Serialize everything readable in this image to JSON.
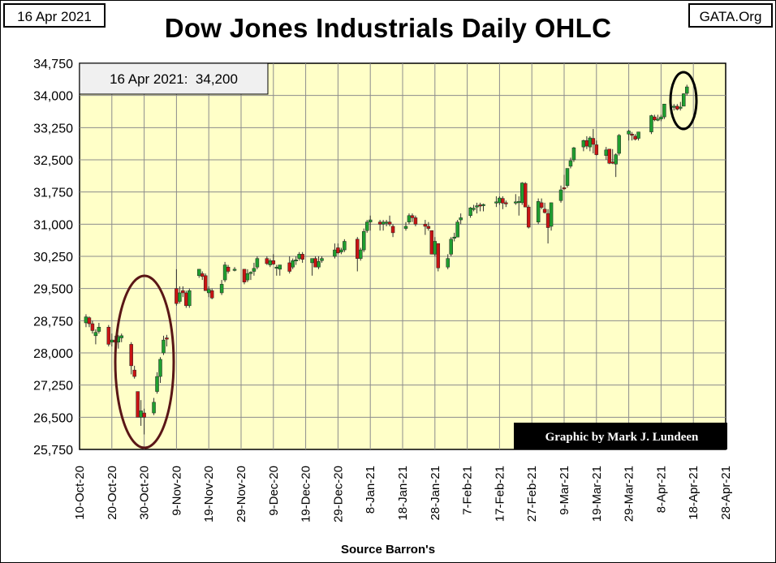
{
  "header": {
    "date_label": "16 Apr 2021",
    "site_label": "GATA.Org",
    "title": "Dow Jones Industrials Daily OHLC"
  },
  "annotations": {
    "price_box": "16 Apr 2021:  34,200",
    "credit": "Graphic by Mark J. Lundeen",
    "source": "Source Barron's"
  },
  "colors": {
    "plot_bg": "#ffffc8",
    "grid": "#8c8c8c",
    "up": "#1f9e2f",
    "down": "#c81414",
    "ellipse_left": "#5a1616",
    "ellipse_right": "#000000",
    "credit_bg": "#000000",
    "credit_text": "#ffffff"
  },
  "chart_data": {
    "type": "candlestick",
    "title": "Dow Jones Industrials Daily OHLC",
    "xlabel": "Source Barron's",
    "ylabel": "",
    "ylim": [
      25750,
      34750
    ],
    "xlim": [
      "2020-10-10",
      "2021-04-28"
    ],
    "grid": true,
    "y_ticks": [
      "25,750",
      "26,500",
      "27,250",
      "28,000",
      "28,750",
      "29,500",
      "30,250",
      "31,000",
      "31,750",
      "32,500",
      "33,250",
      "34,000",
      "34,750"
    ],
    "x_ticks": [
      "10-Oct-20",
      "20-Oct-20",
      "30-Oct-20",
      "9-Nov-20",
      "19-Nov-20",
      "29-Nov-20",
      "9-Dec-20",
      "19-Dec-20",
      "29-Dec-20",
      "8-Jan-21",
      "18-Jan-21",
      "28-Jan-21",
      "7-Feb-21",
      "17-Feb-21",
      "27-Feb-21",
      "9-Mar-21",
      "19-Mar-21",
      "29-Mar-21",
      "8-Apr-21",
      "18-Apr-21",
      "28-Apr-21"
    ],
    "series": [
      {
        "values": [
          [
            "2020-10-12",
            28700,
            28900,
            28600,
            28840
          ],
          [
            "2020-10-13",
            28820,
            28850,
            28600,
            28680
          ],
          [
            "2020-10-14",
            28680,
            28750,
            28450,
            28520
          ],
          [
            "2020-10-15",
            28400,
            28550,
            28200,
            28480
          ],
          [
            "2020-10-16",
            28500,
            28700,
            28450,
            28600
          ],
          [
            "2020-10-19",
            28600,
            28650,
            28150,
            28200
          ],
          [
            "2020-10-20",
            28250,
            28450,
            28150,
            28300
          ],
          [
            "2020-10-21",
            28300,
            28400,
            28200,
            28250
          ],
          [
            "2020-10-22",
            28250,
            28420,
            28100,
            28380
          ],
          [
            "2020-10-23",
            28350,
            28450,
            28250,
            28400
          ],
          [
            "2020-10-26",
            28200,
            28250,
            27500,
            27700
          ],
          [
            "2020-10-27",
            27600,
            27700,
            27400,
            27450
          ],
          [
            "2020-10-28",
            27100,
            27100,
            26500,
            26500
          ],
          [
            "2020-10-29",
            26500,
            26900,
            26300,
            26650
          ],
          [
            "2020-10-30",
            26600,
            26700,
            26100,
            26500
          ],
          [
            "2020-11-02",
            26600,
            26950,
            26550,
            26850
          ],
          [
            "2020-11-03",
            27100,
            27550,
            27050,
            27450
          ],
          [
            "2020-11-04",
            27450,
            27900,
            27300,
            27850
          ],
          [
            "2020-11-05",
            28000,
            28400,
            27950,
            28300
          ],
          [
            "2020-11-06",
            28350,
            28420,
            28150,
            28320
          ],
          [
            "2020-11-09",
            29500,
            29950,
            29100,
            29150
          ],
          [
            "2020-11-10",
            29200,
            29550,
            29150,
            29400
          ],
          [
            "2020-11-11",
            29450,
            29550,
            29300,
            29400
          ],
          [
            "2020-11-12",
            29400,
            29450,
            29050,
            29100
          ],
          [
            "2020-11-13",
            29100,
            29500,
            29050,
            29450
          ],
          [
            "2020-11-16",
            29800,
            29950,
            29750,
            29950
          ],
          [
            "2020-11-17",
            29850,
            29900,
            29700,
            29780
          ],
          [
            "2020-11-18",
            29800,
            29850,
            29450,
            29450
          ],
          [
            "2020-11-19",
            29400,
            29550,
            29300,
            29480
          ],
          [
            "2020-11-20",
            29450,
            29500,
            29250,
            29280
          ],
          [
            "2020-11-23",
            29400,
            29700,
            29350,
            29600
          ],
          [
            "2020-11-24",
            29700,
            30120,
            29650,
            30050
          ],
          [
            "2020-11-25",
            30000,
            30050,
            29850,
            29900
          ],
          [
            "2020-11-27",
            29950,
            30000,
            29900,
            29950
          ],
          [
            "2020-11-30",
            29950,
            29950,
            29600,
            29650
          ],
          [
            "2020-12-01",
            29700,
            29950,
            29650,
            29850
          ],
          [
            "2020-12-02",
            29850,
            29900,
            29700,
            29880
          ],
          [
            "2020-12-03",
            29900,
            30100,
            29800,
            29970
          ],
          [
            "2020-12-04",
            30000,
            30250,
            29950,
            30200
          ],
          [
            "2020-12-07",
            30200,
            30250,
            30050,
            30080
          ],
          [
            "2020-12-08",
            30050,
            30200,
            30000,
            30150
          ],
          [
            "2020-12-09",
            30150,
            30300,
            30050,
            30070
          ],
          [
            "2020-12-10",
            30000,
            30050,
            29800,
            30000
          ],
          [
            "2020-12-11",
            29950,
            30050,
            29800,
            30050
          ],
          [
            "2020-12-14",
            30100,
            30250,
            29850,
            29900
          ],
          [
            "2020-12-15",
            30000,
            30200,
            29950,
            30150
          ],
          [
            "2020-12-16",
            30150,
            30250,
            30050,
            30170
          ],
          [
            "2020-12-17",
            30200,
            30350,
            30150,
            30300
          ],
          [
            "2020-12-18",
            30300,
            30350,
            30100,
            30180
          ],
          [
            "2020-12-21",
            30100,
            30200,
            29800,
            30200
          ],
          [
            "2020-12-22",
            30200,
            30250,
            30000,
            30000
          ],
          [
            "2020-12-23",
            30000,
            30250,
            29950,
            30130
          ],
          [
            "2020-12-24",
            30150,
            30250,
            30100,
            30200
          ],
          [
            "2020-12-28",
            30250,
            30550,
            30200,
            30400
          ],
          [
            "2020-12-29",
            30450,
            30550,
            30300,
            30330
          ],
          [
            "2020-12-30",
            30350,
            30450,
            30300,
            30400
          ],
          [
            "2020-12-31",
            30400,
            30650,
            30350,
            30600
          ],
          [
            "2021-01-04",
            30650,
            30700,
            29900,
            30200
          ],
          [
            "2021-01-05",
            30200,
            30450,
            30150,
            30400
          ],
          [
            "2021-01-06",
            30400,
            30900,
            30350,
            30830
          ],
          [
            "2021-01-07",
            30850,
            31100,
            30800,
            31050
          ],
          [
            "2021-01-08",
            31050,
            31200,
            30850,
            31100
          ],
          [
            "2021-01-11",
            31050,
            31100,
            30850,
            31000
          ],
          [
            "2021-01-12",
            31000,
            31100,
            30850,
            31050
          ],
          [
            "2021-01-13",
            31050,
            31100,
            30950,
            31050
          ],
          [
            "2021-01-14",
            31050,
            31200,
            30950,
            31000
          ],
          [
            "2021-01-15",
            30950,
            31000,
            30700,
            30800
          ],
          [
            "2021-01-19",
            30900,
            31050,
            30850,
            30950
          ],
          [
            "2021-01-20",
            31050,
            31250,
            31000,
            31200
          ],
          [
            "2021-01-21",
            31200,
            31250,
            31050,
            31150
          ],
          [
            "2021-01-22",
            31150,
            31200,
            30950,
            31000
          ],
          [
            "2021-01-25",
            31000,
            31100,
            30750,
            30950
          ],
          [
            "2021-01-26",
            30950,
            31050,
            30850,
            30900
          ],
          [
            "2021-01-27",
            30850,
            30850,
            30300,
            30300
          ],
          [
            "2021-01-28",
            30300,
            30700,
            30250,
            30600
          ],
          [
            "2021-01-29",
            30550,
            30550,
            29900,
            29980
          ],
          [
            "2021-02-01",
            30000,
            30300,
            29950,
            30200
          ],
          [
            "2021-02-02",
            30300,
            30700,
            30250,
            30650
          ],
          [
            "2021-02-03",
            30700,
            30800,
            30600,
            30700
          ],
          [
            "2021-02-04",
            30700,
            31100,
            30700,
            31050
          ],
          [
            "2021-02-05",
            31100,
            31250,
            31000,
            31150
          ],
          [
            "2021-02-08",
            31200,
            31400,
            31150,
            31380
          ],
          [
            "2021-02-09",
            31350,
            31450,
            31300,
            31370
          ],
          [
            "2021-02-10",
            31400,
            31500,
            31250,
            31430
          ],
          [
            "2021-02-11",
            31450,
            31500,
            31300,
            31430
          ],
          [
            "2021-02-12",
            31430,
            31480,
            31300,
            31460
          ],
          [
            "2021-02-16",
            31500,
            31650,
            31400,
            31520
          ],
          [
            "2021-02-17",
            31500,
            31650,
            31450,
            31610
          ],
          [
            "2021-02-18",
            31600,
            31650,
            31350,
            31490
          ],
          [
            "2021-02-19",
            31500,
            31550,
            31400,
            31490
          ],
          [
            "2021-02-22",
            31500,
            31700,
            31450,
            31520
          ],
          [
            "2021-02-23",
            31500,
            31650,
            31200,
            31530
          ],
          [
            "2021-02-24",
            31500,
            31980,
            31450,
            31960
          ],
          [
            "2021-02-25",
            31950,
            31980,
            31400,
            31400
          ],
          [
            "2021-02-26",
            31400,
            31450,
            30900,
            30930
          ],
          [
            "2021-03-01",
            31050,
            31600,
            31000,
            31530
          ],
          [
            "2021-03-02",
            31500,
            31600,
            31350,
            31390
          ],
          [
            "2021-03-03",
            31350,
            31500,
            31250,
            31270
          ],
          [
            "2021-03-04",
            31250,
            31350,
            30550,
            30920
          ],
          [
            "2021-03-05",
            30950,
            31500,
            30850,
            31500
          ],
          [
            "2021-03-08",
            31550,
            31900,
            31500,
            31800
          ],
          [
            "2021-03-09",
            31850,
            32150,
            31800,
            31830
          ],
          [
            "2021-03-10",
            31900,
            32300,
            31850,
            32300
          ],
          [
            "2021-03-11",
            32350,
            32550,
            32300,
            32480
          ],
          [
            "2021-03-12",
            32500,
            32800,
            32450,
            32780
          ],
          [
            "2021-03-15",
            32800,
            32970,
            32700,
            32950
          ],
          [
            "2021-03-16",
            32950,
            33050,
            32750,
            32820
          ],
          [
            "2021-03-17",
            32800,
            33050,
            32700,
            33010
          ],
          [
            "2021-03-18",
            33000,
            33220,
            32650,
            32860
          ],
          [
            "2021-03-19",
            32850,
            32950,
            32600,
            32620
          ],
          [
            "2021-03-22",
            32600,
            32800,
            32500,
            32730
          ],
          [
            "2021-03-23",
            32750,
            32750,
            32400,
            32420
          ],
          [
            "2021-03-24",
            32450,
            32750,
            32400,
            32420
          ],
          [
            "2021-03-25",
            32400,
            32650,
            32100,
            32620
          ],
          [
            "2021-03-26",
            32650,
            33100,
            32600,
            33070
          ],
          [
            "2021-03-29",
            33100,
            33200,
            32950,
            33170
          ],
          [
            "2021-03-30",
            33100,
            33150,
            32950,
            33070
          ],
          [
            "2021-03-31",
            33050,
            33100,
            32950,
            32980
          ],
          [
            "2021-04-01",
            33000,
            33150,
            32950,
            33150
          ],
          [
            "2021-04-05",
            33150,
            33550,
            33100,
            33530
          ],
          [
            "2021-04-06",
            33500,
            33550,
            33400,
            33430
          ],
          [
            "2021-04-07",
            33450,
            33550,
            33400,
            33450
          ],
          [
            "2021-04-08",
            33450,
            33550,
            33400,
            33500
          ],
          [
            "2021-04-09",
            33500,
            33800,
            33450,
            33800
          ],
          [
            "2021-04-12",
            33750,
            33800,
            33650,
            33750
          ],
          [
            "2021-04-13",
            33750,
            33800,
            33650,
            33680
          ],
          [
            "2021-04-14",
            33700,
            33850,
            33650,
            33730
          ],
          [
            "2021-04-15",
            33750,
            34050,
            33750,
            34040
          ],
          [
            "2021-04-16",
            34050,
            34250,
            34000,
            34200
          ]
        ]
      }
    ]
  }
}
